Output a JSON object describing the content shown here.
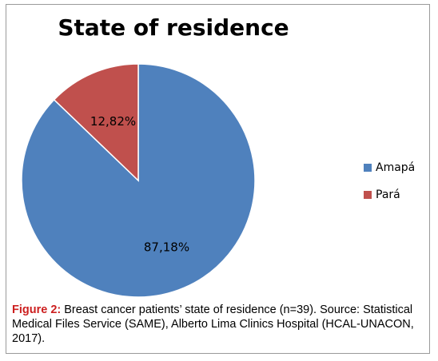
{
  "chart_data": {
    "type": "pie",
    "title": "State of residence",
    "categories": [
      "Amapá",
      "Pará"
    ],
    "values": [
      87.18,
      12.82
    ],
    "data_labels": [
      "87,18%",
      "12,82%"
    ],
    "colors": [
      "#4f81bd",
      "#c0504d"
    ],
    "legend_position": "right"
  },
  "caption": {
    "label": "Figure 2:",
    "text": "Breast cancer patients’ state of residence (n=39). Source: Statistical Medical Files Service (SAME), Alberto Lima Clinics Hospital (HCAL-UNACON, 2017)."
  }
}
